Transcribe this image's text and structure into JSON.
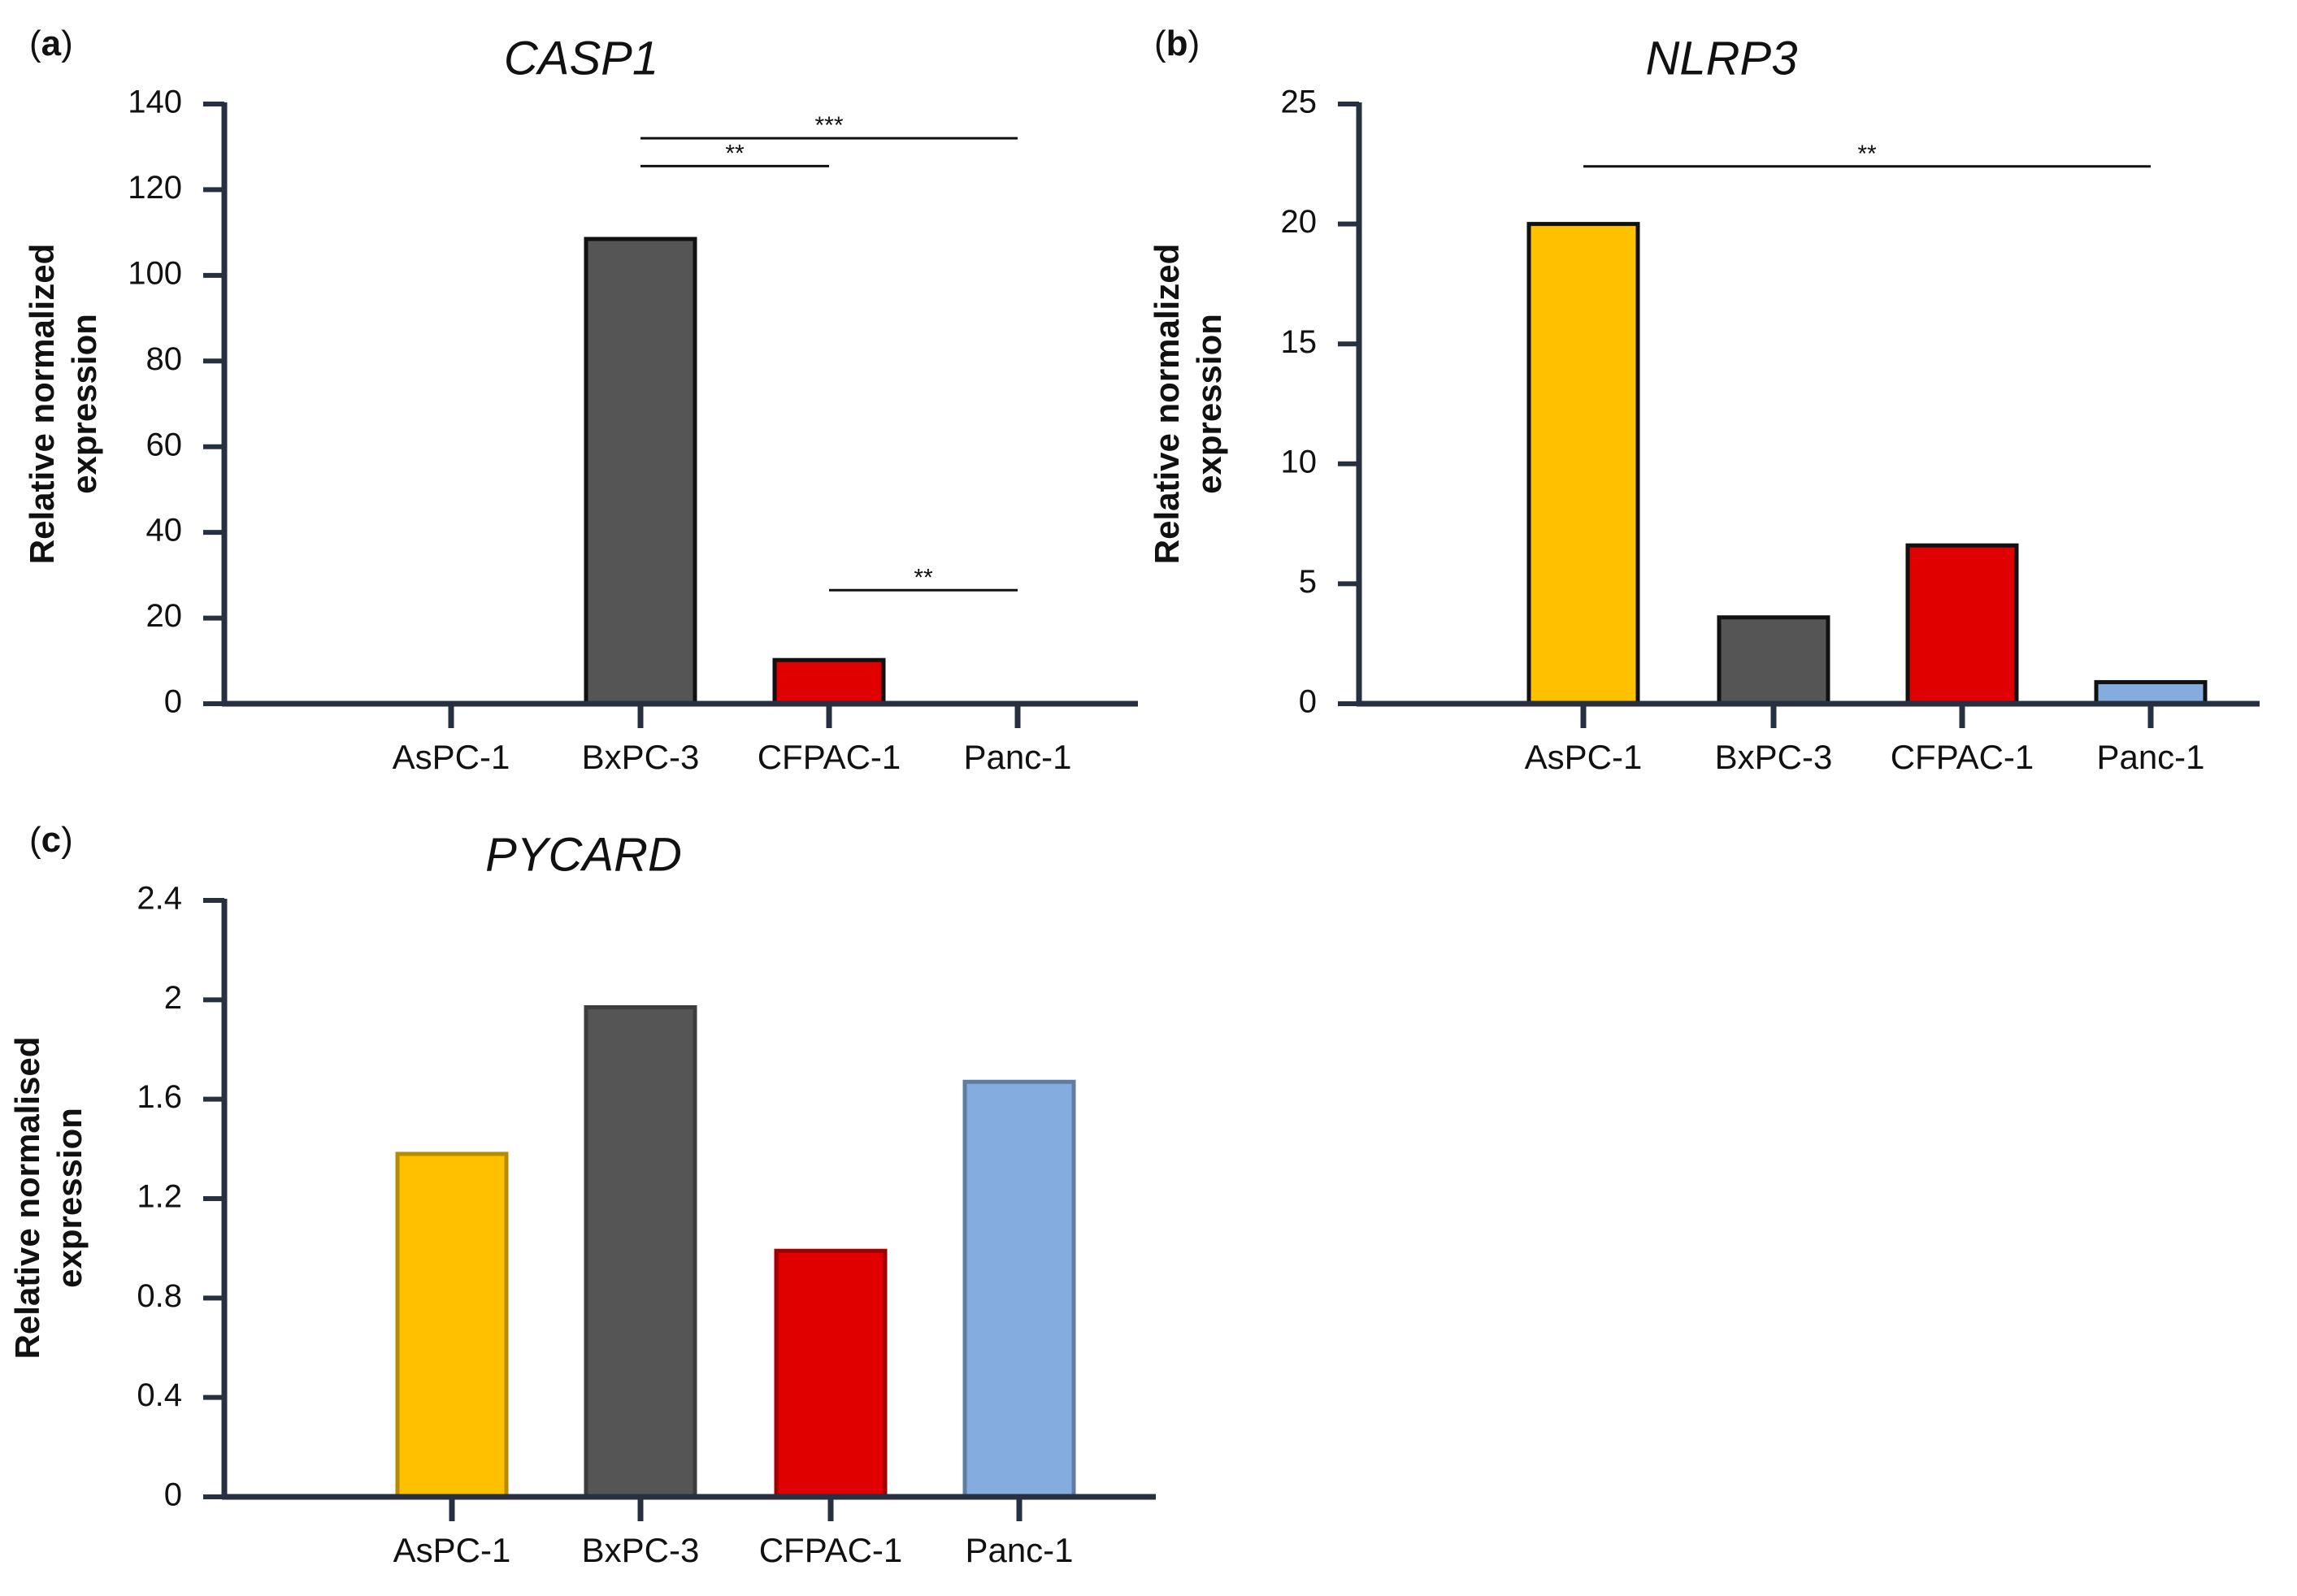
{
  "chart_data": [
    {
      "type": "bar",
      "panel": "(a)",
      "title": "CASP1",
      "ylabel": "Relative normalized\nexpression",
      "xlabel": "",
      "categories": [
        "AsPC-1",
        "BxPC-3",
        "CFPAC-1",
        "Panc-1"
      ],
      "values": [
        0,
        108.5,
        10.2,
        0
      ],
      "colors": [
        "#FFC000",
        "#555555",
        "#E00000",
        "#84ACDF"
      ],
      "ylim": [
        0,
        140
      ],
      "yticks": [
        "0",
        "20",
        "40",
        "60",
        "80",
        "100",
        "120",
        "140"
      ],
      "significance": [
        {
          "from": "BxPC-3",
          "to": "Panc-1",
          "label": "***",
          "y": 132
        },
        {
          "from": "BxPC-3",
          "to": "CFPAC-1",
          "label": "**",
          "y": 125.5
        },
        {
          "from": "CFPAC-1",
          "to": "Panc-1",
          "label": "**",
          "y": 26.5
        }
      ]
    },
    {
      "type": "bar",
      "panel": "(b)",
      "title": "NLRP3",
      "ylabel": "Relative normalized\nexpression",
      "xlabel": "",
      "categories": [
        "AsPC-1",
        "BxPC-3",
        "CFPAC-1",
        "Panc-1"
      ],
      "values": [
        20,
        3.6,
        6.6,
        0.9
      ],
      "colors": [
        "#FFC000",
        "#555555",
        "#E00000",
        "#84ACDF"
      ],
      "ylim": [
        0,
        25
      ],
      "yticks": [
        "0",
        "5",
        "10",
        "15",
        "20",
        "25"
      ],
      "significance": [
        {
          "from": "AsPC-1",
          "to": "Panc-1",
          "label": "**",
          "y": 22.4
        }
      ]
    },
    {
      "type": "bar",
      "panel": "(c)",
      "title": "PYCARD",
      "ylabel": "Relative normalised\nexpression",
      "xlabel": "",
      "categories": [
        "AsPC-1",
        "BxPC-3",
        "CFPAC-1",
        "Panc-1"
      ],
      "values": [
        1.38,
        1.97,
        0.99,
        1.67
      ],
      "colors": [
        "#FFC000",
        "#555555",
        "#E00000",
        "#84ACDF"
      ],
      "ylim": [
        0,
        2.4
      ],
      "yticks": [
        "0",
        "0.4",
        "0.8",
        "1.2",
        "1.6",
        "2",
        "2.4"
      ],
      "significance": []
    }
  ]
}
